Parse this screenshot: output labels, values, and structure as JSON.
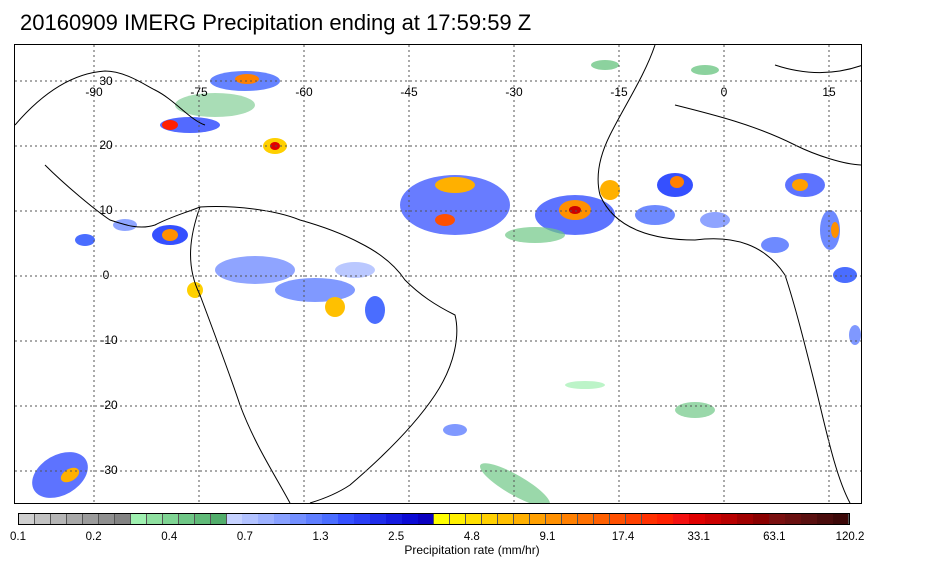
{
  "title": "20160909 IMERG Precipitation ending at 17:59:59 Z",
  "map": {
    "longitude_labels": [
      "-90",
      "-75",
      "-60",
      "-45",
      "-30",
      "-15",
      "0",
      "15"
    ],
    "latitude_labels": [
      "30",
      "20",
      "10",
      "0",
      "-10",
      "-20",
      "-30"
    ],
    "gridlines": "dotted"
  },
  "colorbar": {
    "title": "Precipitation rate (mm/hr)",
    "tick_labels": [
      "0.1",
      "0.2",
      "0.4",
      "0.7",
      "1.3",
      "2.5",
      "4.8",
      "9.1",
      "17.4",
      "33.1",
      "63.1",
      "120.2"
    ],
    "colors": [
      "#cfcfcf",
      "#c2c2c2",
      "#b5b5b5",
      "#a8a8a8",
      "#9b9b9b",
      "#8f8f8f",
      "#838383",
      "#9ff0b0",
      "#8fe0a0",
      "#7fd493",
      "#6fc786",
      "#60ba78",
      "#52ad6b",
      "#c6d2ff",
      "#b2c2ff",
      "#9db1ff",
      "#88a0ff",
      "#738fff",
      "#5f7eff",
      "#4a6dff",
      "#3550ff",
      "#2a3ef5",
      "#1f2cea",
      "#151be0",
      "#0b0ad5",
      "#0a00c0",
      "#ffff00",
      "#fff000",
      "#ffe000",
      "#ffd000",
      "#ffc000",
      "#ffb000",
      "#ffa000",
      "#ff9000",
      "#ff8000",
      "#ff7000",
      "#ff6000",
      "#ff5000",
      "#ff4000",
      "#ff3000",
      "#ff2000",
      "#f41010",
      "#e00000",
      "#cc0000",
      "#b80000",
      "#a00000",
      "#8a0000",
      "#7a1010",
      "#6a1010",
      "#5a1010",
      "#4a0c0c",
      "#3c0808"
    ]
  }
}
